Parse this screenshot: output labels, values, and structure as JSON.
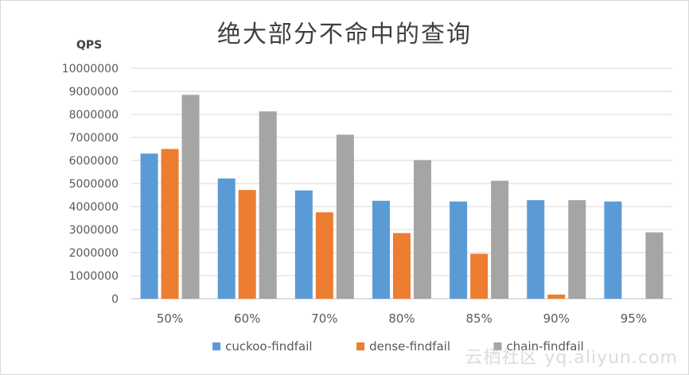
{
  "chart_data": {
    "type": "bar",
    "title": "绝大部分不命中的查询",
    "ylabel": "QPS",
    "xlabel": "",
    "categories": [
      "50%",
      "60%",
      "70%",
      "80%",
      "85%",
      "90%",
      "95%"
    ],
    "ylim": [
      0,
      10000000
    ],
    "yticks": [
      "0",
      "1000000",
      "2000000",
      "3000000",
      "4000000",
      "5000000",
      "6000000",
      "7000000",
      "8000000",
      "9000000",
      "10000000"
    ],
    "grid": true,
    "legend_position": "bottom",
    "series": [
      {
        "name": "cuckoo-findfail",
        "color": "#5b9bd5",
        "values": [
          6300000,
          5220000,
          4700000,
          4250000,
          4220000,
          4280000,
          4220000
        ]
      },
      {
        "name": "dense-findfail",
        "color": "#ed7d31",
        "values": [
          6500000,
          4720000,
          3750000,
          2850000,
          1950000,
          180000,
          0
        ]
      },
      {
        "name": "chain-findfail",
        "color": "#a5a5a5",
        "values": [
          8850000,
          8130000,
          7120000,
          6020000,
          5120000,
          4280000,
          2880000
        ]
      }
    ]
  },
  "watermark": "云栖社区 yq.aliyun.com"
}
